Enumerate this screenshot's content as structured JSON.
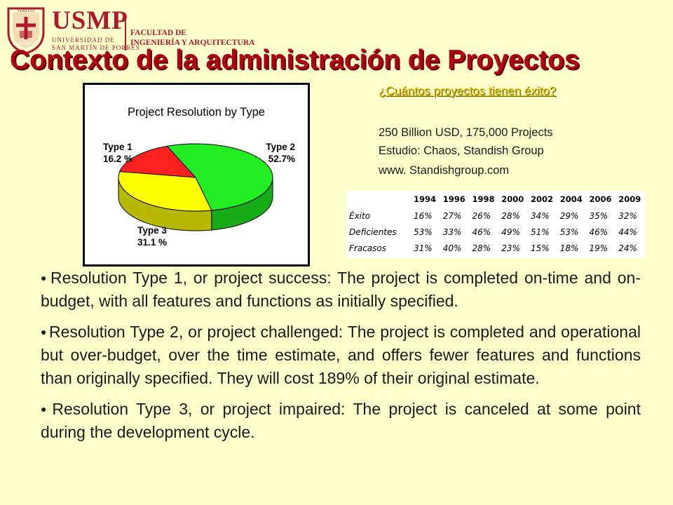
{
  "logo": {
    "seal_text_top": "VERITAS",
    "seal_text_bottom": "LIBERABIT VOS",
    "name": "USMP",
    "university_line1": "UNIVERSIDAD DE",
    "university_line2": "SAN MARTÍN DE PORRES",
    "faculty_line1": "FACULTAD DE",
    "faculty_line2": "INGENIERÍA Y ARQUITECTURA"
  },
  "title": "Contexto de la administración de Proyectos",
  "chart_data": {
    "type": "pie",
    "title": "Project Resolution by Type",
    "slices": [
      {
        "label": "Type 1",
        "value": 16.2,
        "value_label": "16.2 %",
        "color": "#ff2020"
      },
      {
        "label": "Type 2",
        "value": 52.7,
        "value_label": "52.7%",
        "color": "#22ee22"
      },
      {
        "label": "Type 3",
        "value": 31.1,
        "value_label": "31.1 %",
        "color": "#ffff00"
      }
    ]
  },
  "question": "¿Cuántos proyectos tienen éxito?",
  "info": {
    "line1": "250 Billion USD, 175,000 Projects",
    "line2": "Estudio: Chaos, Standish Group",
    "line3": "www. Standishgroup.com"
  },
  "stats_table": {
    "years": [
      "1994",
      "1996",
      "1998",
      "2000",
      "2002",
      "2004",
      "2006",
      "2009"
    ],
    "rows": [
      {
        "label": "Éxito",
        "values": [
          "16%",
          "27%",
          "26%",
          "28%",
          "34%",
          "29%",
          "35%",
          "32%"
        ]
      },
      {
        "label": "Deficientes",
        "values": [
          "53%",
          "33%",
          "46%",
          "49%",
          "51%",
          "53%",
          "46%",
          "44%"
        ]
      },
      {
        "label": "Fracasos",
        "values": [
          "31%",
          "40%",
          "28%",
          "23%",
          "15%",
          "18%",
          "19%",
          "24%"
        ]
      }
    ]
  },
  "bullet_symbol": "●",
  "paragraphs": [
    "Resolution Type 1, or project success: The project is completed on-time and on-budget, with all features and functions as initially specified.",
    "Resolution Type 2, or project challenged: The project is completed and operational but over-budget, over the time estimate, and offers fewer features and functions than originally specified. They will cost 189% of their original estimate.",
    "Resolution Type 3, or project impaired: The project is canceled at some point during the development cycle."
  ]
}
